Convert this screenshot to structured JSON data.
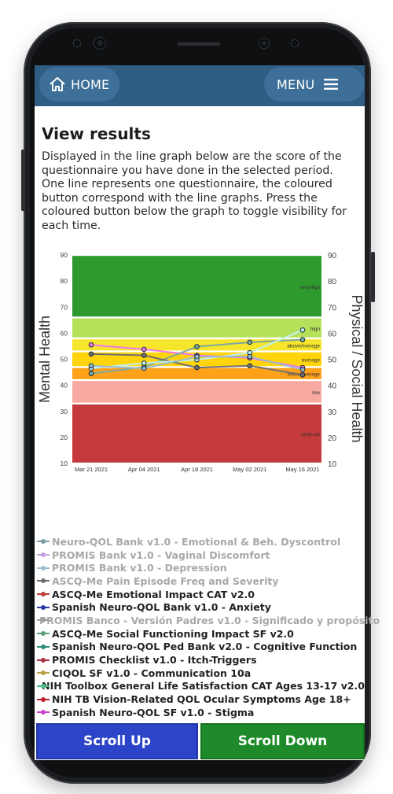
{
  "header": {
    "home_label": "HOME",
    "menu_label": "MENU"
  },
  "page": {
    "title": "View results",
    "description": "Displayed in the line graph below are the score of the questionnaire you have done in the selected period. One line represents one questionnaire, the coloured button correspond with the line graphs. Press the coloured button below the graph to toggle visibility for each time."
  },
  "chart_data": {
    "type": "line",
    "ylabel_left": "Mental Health",
    "ylabel_right": "Physical / Social Health",
    "ylim": [
      10,
      90
    ],
    "yticks": [
      10,
      20,
      30,
      40,
      50,
      60,
      70,
      80,
      90
    ],
    "x": [
      "Mar 21 2021",
      "Apr 04 2021",
      "Apr 18 2021",
      "May 02 2021",
      "May 16 2021"
    ],
    "bands": [
      {
        "label": "veryHigh",
        "from": 66,
        "to": 90,
        "color": "#2e9a2e"
      },
      {
        "label": "high",
        "from": 58,
        "to": 66,
        "color": "#b5e15a"
      },
      {
        "label": "aboveAverage",
        "from": 53,
        "to": 58,
        "color": "#f6e52a"
      },
      {
        "label": "average",
        "from": 47,
        "to": 53,
        "color": "#ffd40a"
      },
      {
        "label": "belowAverage",
        "from": 42,
        "to": 47,
        "color": "#ffa21a"
      },
      {
        "label": "low",
        "from": 33,
        "to": 42,
        "color": "#f7a8a0"
      },
      {
        "label": "veryLow",
        "from": 10,
        "to": 33,
        "color": "#c53a3a"
      }
    ],
    "series": [
      {
        "color": "#ee77ee",
        "values": [
          55.5,
          53.8,
          51.5,
          50.5,
          46.8
        ]
      },
      {
        "color": "#7aa8a0",
        "values": [
          44.5,
          47.0,
          54.8,
          56.5,
          57.5
        ]
      },
      {
        "color": "#6f6f6f",
        "values": [
          52.0,
          51.5,
          46.8,
          47.5,
          44.0
        ]
      },
      {
        "color": "#c0f0f0",
        "values": [
          46.5,
          48.5,
          49.8,
          52.5,
          61.2
        ]
      },
      {
        "color": "#99bbcc",
        "values": [
          47.5,
          46.5,
          51.0,
          51.0,
          46.0
        ]
      }
    ]
  },
  "legend": [
    {
      "label": "Neuro-QOL Bank v1.0 - Emotional & Beh. Dyscontrol",
      "color": "#7b9aa6",
      "active": false
    },
    {
      "label": "PROMIS Bank v1.0 - Vaginal Discomfort",
      "color": "#c8a0e0",
      "active": false
    },
    {
      "label": "PROMIS Bank v1.0 - Depression",
      "color": "#9bbbd0",
      "active": false
    },
    {
      "label": "ASCQ-Me Pain Episode Freq and Severity",
      "color": "#6f6f6f",
      "active": false
    },
    {
      "label": "ASCQ-Me Emotional Impact CAT v2.0",
      "color": "#c03a3a",
      "active": true
    },
    {
      "label": "Spanish Neuro-QOL Bank v1.0 - Anxiety",
      "color": "#2a3aa0",
      "active": true
    },
    {
      "label": "PROMIS Banco - Versión Padres v1.0 - Significado y propósito",
      "color": "#a0a0a0",
      "active": false
    },
    {
      "label": "ASCQ-Me Social Functioning Impact SF v2.0",
      "color": "#5aa07a",
      "active": true
    },
    {
      "label": "Spanish Neuro-QOL Ped Bank v2.0 - Cognitive Function",
      "color": "#2a8a7a",
      "active": true
    },
    {
      "label": "PROMIS Checklist v1.0 - Itch-Triggers",
      "color": "#b03040",
      "active": true
    },
    {
      "label": "CIQOL SF v1.0 - Communication 10a",
      "color": "#b8a040",
      "active": true
    },
    {
      "label": "NIH Toolbox General Life Satisfaction CAT Ages 13-17 v2.0",
      "color": "#4aba8a",
      "active": true
    },
    {
      "label": "NIH TB Vision-Related QOL Ocular Symptoms Age 18+",
      "color": "#c02030",
      "active": true
    },
    {
      "label": "Spanish Neuro-QOL SF v1.0 - Stigma",
      "color": "#d040d0",
      "active": true
    }
  ],
  "scroll": {
    "up_label": "Scroll Up",
    "down_label": "Scroll Down"
  }
}
